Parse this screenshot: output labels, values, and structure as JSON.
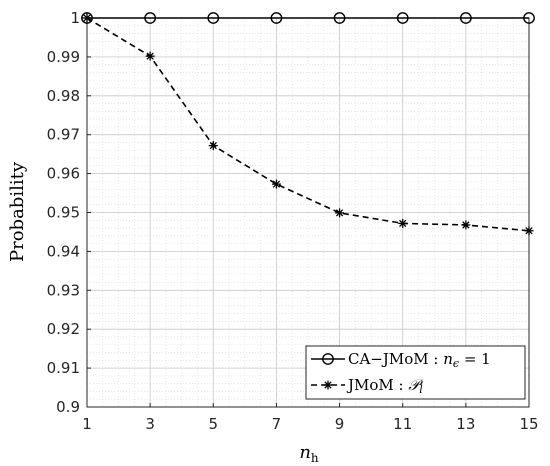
{
  "chart_data": {
    "type": "line",
    "xlabel": "n",
    "xlabel_sub": "h",
    "ylabel": "Probability",
    "xlim": [
      1,
      15
    ],
    "ylim": [
      0.9,
      1.0
    ],
    "xticks": [
      "1",
      "3",
      "5",
      "7",
      "9",
      "11",
      "13",
      "15"
    ],
    "xtick_values": [
      1,
      3,
      5,
      7,
      9,
      11,
      13,
      15
    ],
    "yticks": [
      "0.9",
      "0.91",
      "0.92",
      "0.93",
      "0.94",
      "0.95",
      "0.96",
      "0.97",
      "0.98",
      "0.99",
      "1"
    ],
    "ytick_values": [
      0.9,
      0.91,
      0.92,
      0.93,
      0.94,
      0.95,
      0.96,
      0.97,
      0.98,
      0.99,
      1.0
    ],
    "grid": true,
    "minor_grid": true,
    "legend_position": "bottom-right",
    "x": [
      1,
      3,
      5,
      7,
      9,
      11,
      13,
      15
    ],
    "series": [
      {
        "name": "CA−JMoM : nϵ = 1",
        "legend_label": "CA−JMoM : ",
        "legend_math": "n",
        "legend_math_sub": "ϵ",
        "legend_math_rest": " = 1",
        "marker": "circle",
        "line_style": "solid",
        "color": "#000000",
        "values": [
          1.0,
          1.0,
          1.0,
          1.0,
          1.0,
          1.0,
          1.0,
          1.0
        ]
      },
      {
        "name": "JMoM : 𝒫l",
        "legend_label": "JMoM : ",
        "legend_math": "𝒫",
        "legend_math_sub": "l",
        "legend_math_rest": "",
        "marker": "asterisk",
        "line_style": "dashed",
        "color": "#000000",
        "values": [
          1.0,
          0.9902,
          0.9672,
          0.9573,
          0.9499,
          0.9472,
          0.9468,
          0.9453
        ]
      }
    ]
  }
}
